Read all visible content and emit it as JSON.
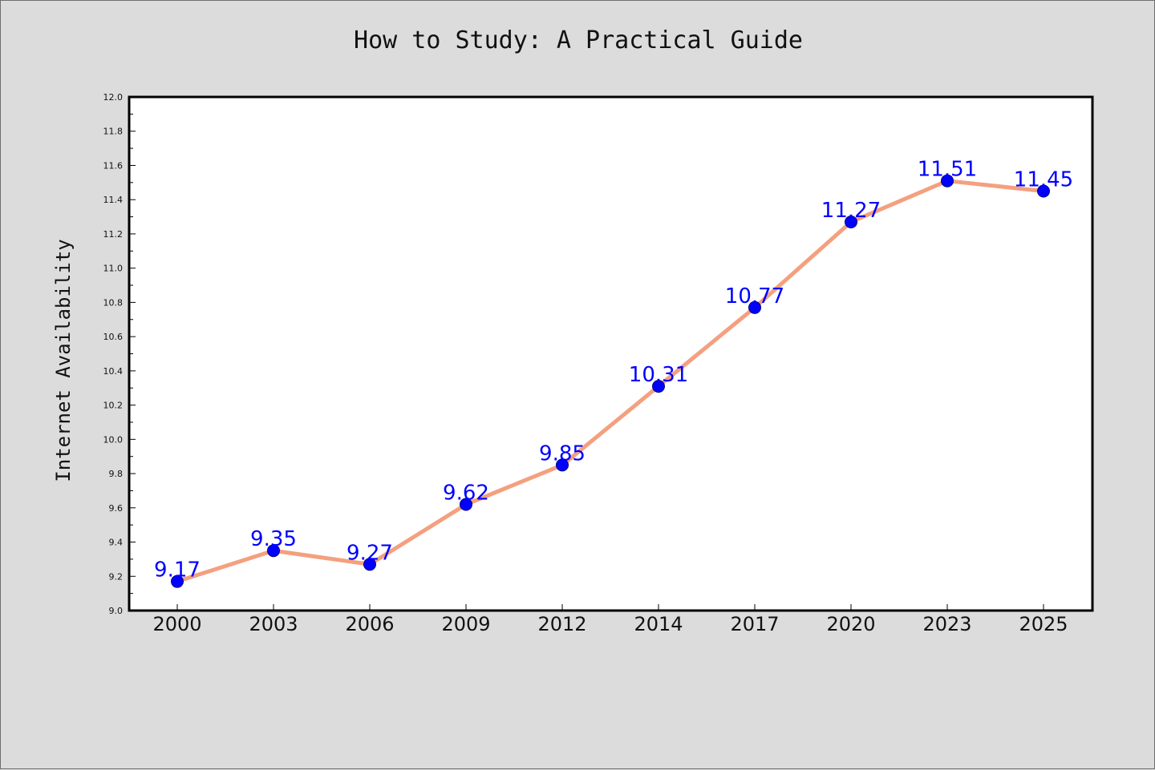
{
  "chart_data": {
    "type": "line",
    "title": "How to Study: A Practical Guide",
    "xlabel": "",
    "ylabel": "Internet Availability",
    "categories": [
      "2000",
      "2003",
      "2006",
      "2009",
      "2012",
      "2014",
      "2017",
      "2020",
      "2023",
      "2025"
    ],
    "series": [
      {
        "values": [
          9.17,
          9.35,
          9.27,
          9.62,
          9.85,
          10.31,
          10.77,
          11.27,
          11.51,
          11.45
        ],
        "data_labels": [
          "9.17",
          "9.35",
          "9.27",
          "9.62",
          "9.85",
          "10.31",
          "10.77",
          "11.27",
          "11.51",
          "11.45"
        ]
      }
    ],
    "ylim": [
      9.0,
      12.0
    ],
    "yticks": [
      "9.0",
      "9.2",
      "9.4",
      "9.6",
      "9.8",
      "10.0",
      "10.2",
      "10.4",
      "10.6",
      "10.8",
      "11.0",
      "11.2",
      "11.4",
      "11.6",
      "11.8",
      "12.0"
    ],
    "grid": false,
    "legend": "none",
    "colors": {
      "line": "#f4a07f",
      "marker": "#0000ff",
      "marker_edge": "#00008b",
      "data_label": "#0000ff",
      "background": "#dcdcdc",
      "plot_background": "#ffffff"
    }
  }
}
